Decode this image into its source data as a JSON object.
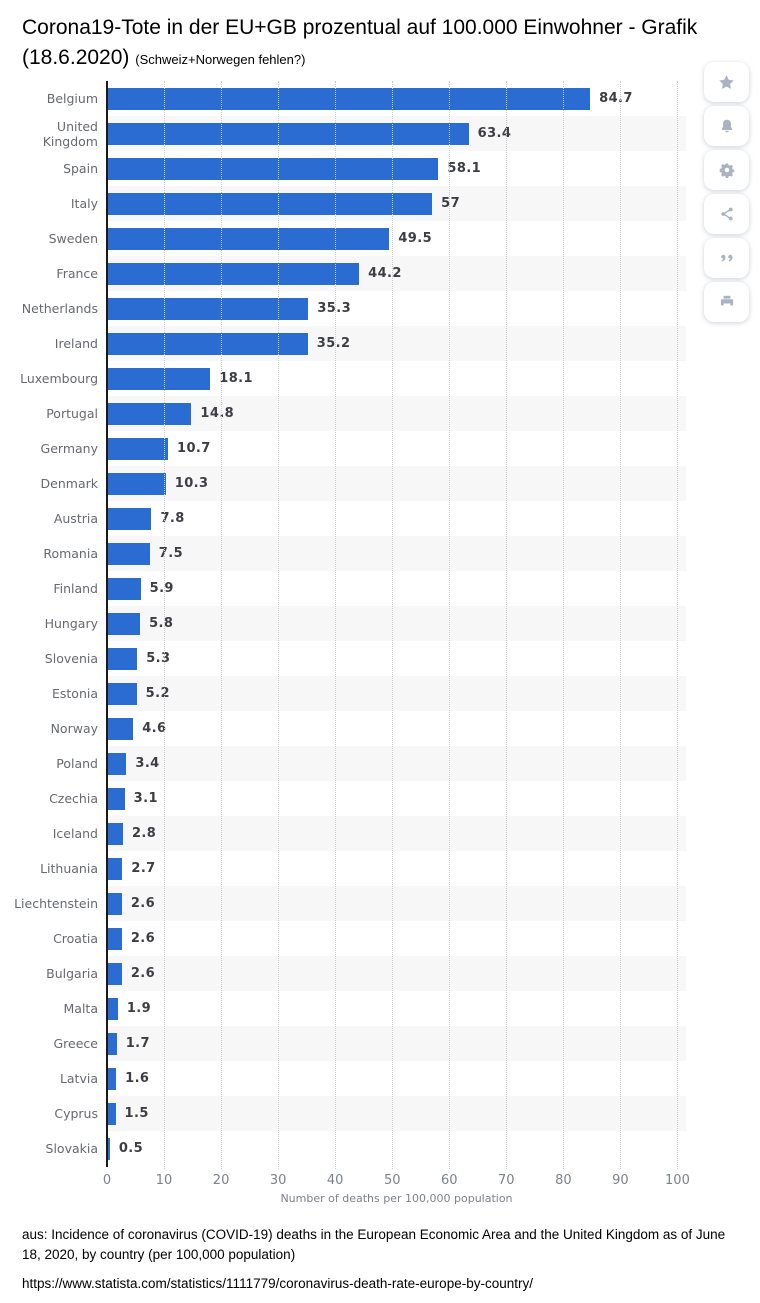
{
  "page": {
    "title_line1": "Corona19-Tote in der EU+GB prozentual auf 100.000 Einwohner - Grafik",
    "title_line2": "(18.6.2020)",
    "title_note": "(Schweiz+Norwegen fehlen?)"
  },
  "toolbar": {
    "buttons": [
      {
        "name": "favorite",
        "icon": "star-icon"
      },
      {
        "name": "alerts",
        "icon": "bell-icon"
      },
      {
        "name": "settings",
        "icon": "gear-icon"
      },
      {
        "name": "share",
        "icon": "share-icon"
      },
      {
        "name": "cite",
        "icon": "quote-icon"
      },
      {
        "name": "print",
        "icon": "printer-icon"
      }
    ]
  },
  "chart_data": {
    "type": "bar",
    "orientation": "horizontal",
    "title": "Corona19-Tote in der EU+GB prozentual auf 100.000 Einwohner - Grafik (18.6.2020) (Schweiz+Norwegen fehlen?)",
    "categories": [
      "Belgium",
      "United Kingdom",
      "Spain",
      "Italy",
      "Sweden",
      "France",
      "Netherlands",
      "Ireland",
      "Luxembourg",
      "Portugal",
      "Germany",
      "Denmark",
      "Austria",
      "Romania",
      "Finland",
      "Hungary",
      "Slovenia",
      "Estonia",
      "Norway",
      "Poland",
      "Czechia",
      "Iceland",
      "Lithuania",
      "Liechtenstein",
      "Croatia",
      "Bulgaria",
      "Malta",
      "Greece",
      "Latvia",
      "Cyprus",
      "Slovakia"
    ],
    "values": [
      84.7,
      63.4,
      58.1,
      57,
      49.5,
      44.2,
      35.3,
      35.2,
      18.1,
      14.8,
      10.7,
      10.3,
      7.8,
      7.5,
      5.9,
      5.8,
      5.3,
      5.2,
      4.6,
      3.4,
      3.1,
      2.8,
      2.7,
      2.6,
      2.6,
      2.6,
      1.9,
      1.7,
      1.6,
      1.5,
      0.5
    ],
    "value_labels": [
      "84.7",
      "63.4",
      "58.1",
      "57",
      "49.5",
      "44.2",
      "35.3",
      "35.2",
      "18.1",
      "14.8",
      "10.7",
      "10.3",
      "7.8",
      "7.5",
      "5.9",
      "5.8",
      "5.3",
      "5.2",
      "4.6",
      "3.4",
      "3.1",
      "2.8",
      "2.7",
      "2.6",
      "2.6",
      "2.6",
      "1.9",
      "1.7",
      "1.6",
      "1.5",
      "0.5"
    ],
    "xlabel": "Number of deaths per 100,000 population",
    "ylabel": "",
    "x_ticks": [
      0,
      10,
      20,
      30,
      40,
      50,
      60,
      70,
      80,
      90,
      100
    ],
    "xlim": [
      0,
      101.5
    ],
    "grid": "dotted-vertical",
    "legend": "none",
    "bar_color": "#2a6cd2",
    "stripe_color": "#f7f7f8"
  },
  "footer": {
    "source_line": "aus: Incidence of coronavirus (COVID-19) deaths in the European Economic Area and the United Kingdom as of June 18, 2020, by country (per 100,000 population)",
    "url": "https://www.statista.com/statistics/1111779/coronavirus-death-rate-europe-by-country/"
  }
}
